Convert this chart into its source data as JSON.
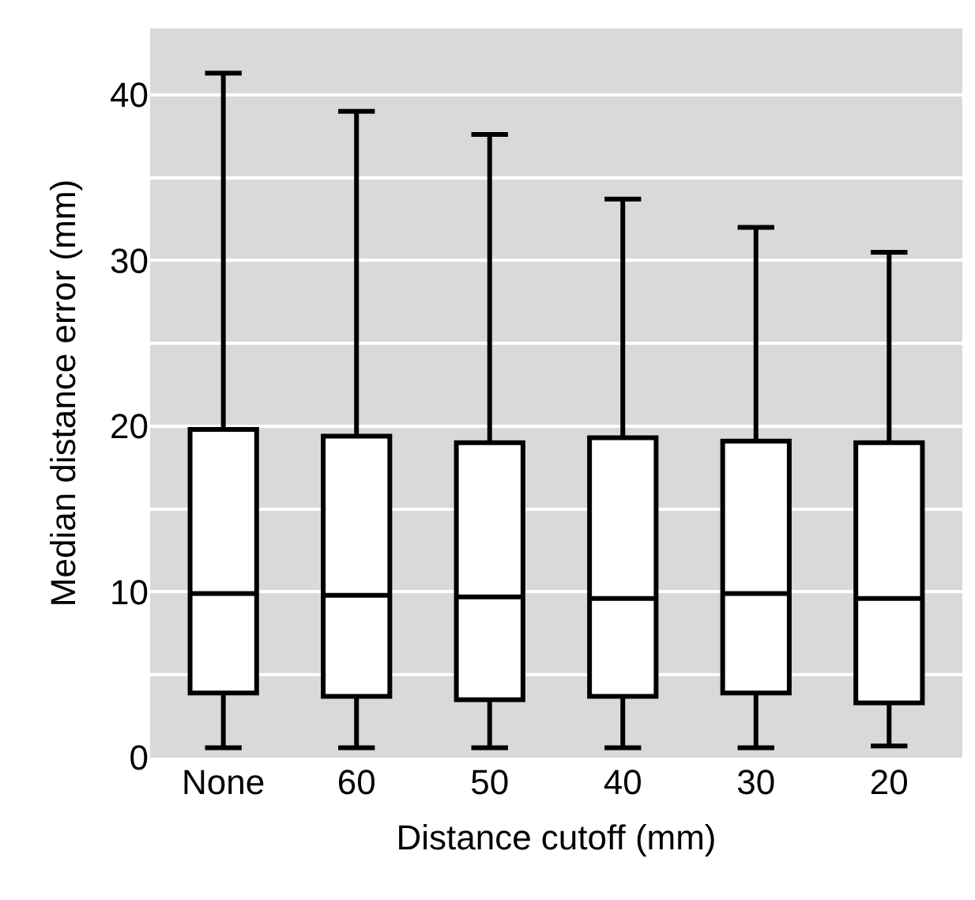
{
  "chart_data": {
    "type": "box",
    "xlabel": "Distance cutoff (mm)",
    "ylabel": "Median distance error (mm)",
    "categories": [
      "None",
      "60",
      "50",
      "40",
      "30",
      "20"
    ],
    "boxes": [
      {
        "low": 0.6,
        "q1": 3.9,
        "median": 9.9,
        "q3": 19.8,
        "high": 41.3
      },
      {
        "low": 0.6,
        "q1": 3.7,
        "median": 9.8,
        "q3": 19.4,
        "high": 39.0
      },
      {
        "low": 0.6,
        "q1": 3.5,
        "median": 9.7,
        "q3": 19.0,
        "high": 37.6
      },
      {
        "low": 0.6,
        "q1": 3.7,
        "median": 9.6,
        "q3": 19.3,
        "high": 33.7
      },
      {
        "low": 0.6,
        "q1": 3.9,
        "median": 9.9,
        "q3": 19.1,
        "high": 32.0
      },
      {
        "low": 0.7,
        "q1": 3.3,
        "median": 9.6,
        "q3": 19.0,
        "high": 30.5
      }
    ],
    "color": "#000000",
    "ylim": [
      0,
      44
    ],
    "yticks": [
      0,
      {
        "value": 5,
        "label": null
      },
      10,
      {
        "value": 15,
        "label": null
      },
      20,
      {
        "value": 25,
        "label": null
      },
      30,
      {
        "value": 35,
        "label": null
      },
      40
    ],
    "grid": "y",
    "legend": false
  }
}
